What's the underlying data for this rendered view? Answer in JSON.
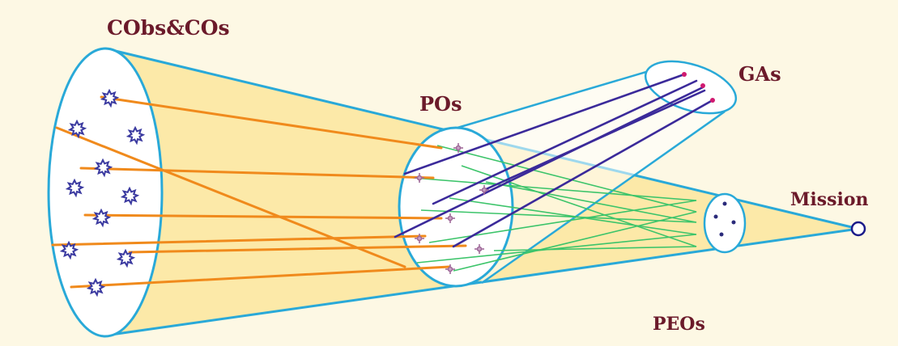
{
  "labels": {
    "cobs": "CObs&COs",
    "pos": "POs",
    "gas": "GAs",
    "mission": "Mission",
    "peos": "PEOs"
  },
  "colors": {
    "background": "#fdf8e4",
    "cone_fill": "#fce9a8",
    "ellipse_stroke": "#29a9d8",
    "ellipse_fill": "#ffffff",
    "orange_line": "#f08a1c",
    "purple_line": "#3b2a9a",
    "green_line": "#3cc46a",
    "star_color": "#3b3aa0",
    "po_mark_color": "#a06a9a",
    "ga_mark_color": "#d01a70",
    "peo_dot_color": "#2a2a7a",
    "mission_circle": "#1c1c8a"
  }
}
